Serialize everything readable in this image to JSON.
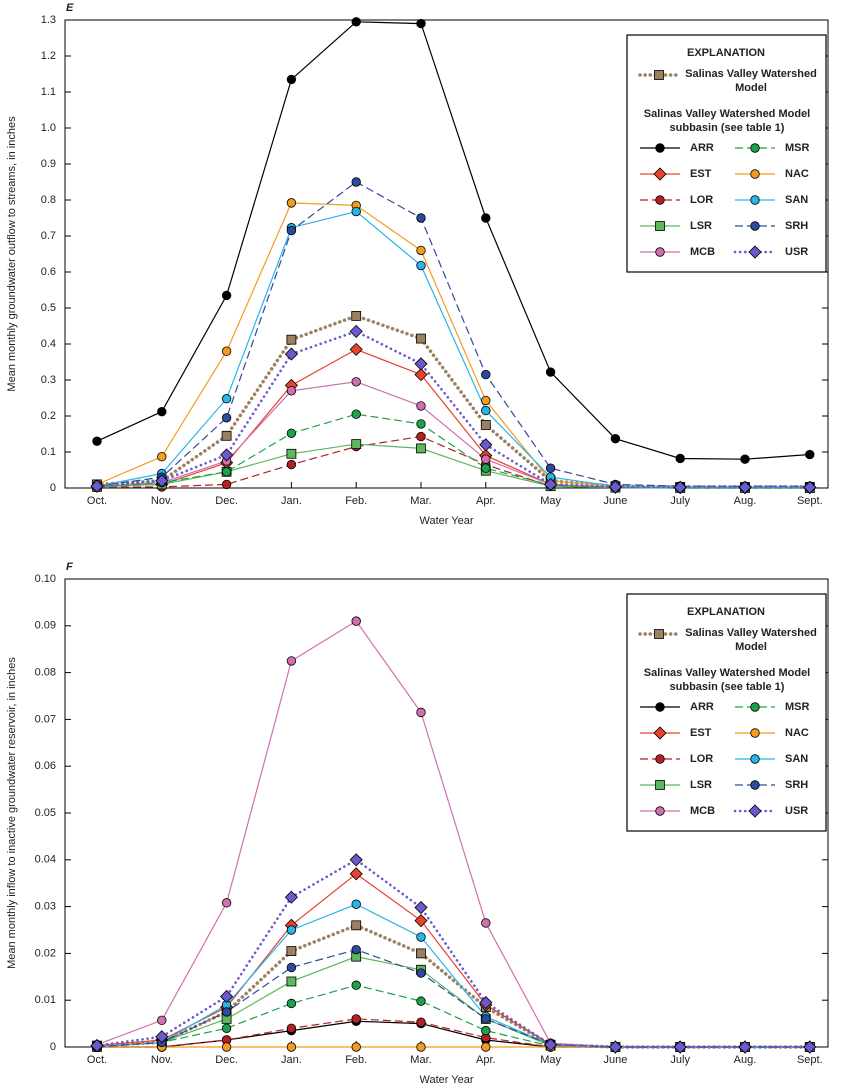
{
  "chart_data": [
    {
      "type": "line",
      "title": "E",
      "y_label": "Mean monthly groundwater outflow to streams, in inches",
      "x_label": "Water Year",
      "legend_title": "EXPLANATION",
      "legend_subheading": "Salinas Valley Watershed Model subbasin (see table 1)",
      "legend": "upper right",
      "categories": [
        "Oct.",
        "Nov.",
        "Dec.",
        "Jan.",
        "Feb.",
        "Mar.",
        "Apr.",
        "May",
        "June",
        "July",
        "Aug.",
        "Sept."
      ],
      "ylim": [
        0,
        1.3
      ],
      "yticks": [
        0,
        0.1,
        0.2,
        0.3,
        0.4,
        0.5,
        0.6,
        0.7,
        0.8,
        0.9,
        {
          "value": 1,
          "label": "1.0"
        },
        1.1,
        1.2,
        1.3
      ],
      "series": [
        {
          "name": "Salinas Valley Watershed Model",
          "color": "#9c8060",
          "line_style": "dotted",
          "marker": "square",
          "values": [
            0.01,
            0.02,
            0.145,
            0.412,
            0.478,
            0.415,
            0.175,
            0.02,
            0.005,
            0.003,
            0.003,
            0.003
          ]
        },
        {
          "name": "ARR",
          "color": "#000000",
          "line_style": "solid",
          "marker": "circle",
          "values": [
            0.13,
            0.212,
            0.535,
            1.135,
            1.295,
            1.29,
            0.75,
            0.322,
            0.137,
            0.082,
            0.08,
            0.093
          ]
        },
        {
          "name": "EST",
          "color": "#e8412c",
          "line_style": "solid",
          "marker": "diamond",
          "values": [
            0.005,
            0.01,
            0.07,
            0.285,
            0.385,
            0.315,
            0.09,
            0.01,
            0.002,
            0.001,
            0.001,
            0.001
          ]
        },
        {
          "name": "LOR",
          "color": "#b41f24",
          "line_style": "dashed",
          "marker": "circle",
          "values": [
            0.002,
            0.003,
            0.01,
            0.065,
            0.115,
            0.143,
            0.065,
            0.005,
            0.001,
            0,
            0,
            0
          ]
        },
        {
          "name": "LSR",
          "color": "#5cb85c",
          "line_style": "solid",
          "marker": "square",
          "values": [
            0.003,
            0.01,
            0.045,
            0.095,
            0.122,
            0.11,
            0.048,
            0.005,
            0.001,
            0,
            0,
            0
          ]
        },
        {
          "name": "MCB",
          "color": "#d070b0",
          "line_style": "solid",
          "marker": "circle",
          "values": [
            0.005,
            0.015,
            0.075,
            0.27,
            0.295,
            0.228,
            0.08,
            0.01,
            0.002,
            0.001,
            0.001,
            0.001
          ]
        },
        {
          "name": "MSR",
          "color": "#1aa34a",
          "line_style": "dashed",
          "marker": "circle",
          "values": [
            0.003,
            0.015,
            0.045,
            0.152,
            0.205,
            0.178,
            0.055,
            0.008,
            0.001,
            0,
            0,
            0
          ]
        },
        {
          "name": "NAC",
          "color": "#f39c1f",
          "line_style": "solid",
          "marker": "circle",
          "values": [
            0.01,
            0.087,
            0.38,
            0.792,
            0.785,
            0.66,
            0.243,
            0.02,
            0.005,
            0.003,
            0.003,
            0.003
          ]
        },
        {
          "name": "SAN",
          "color": "#29b5e8",
          "line_style": "solid",
          "marker": "circle",
          "values": [
            0.005,
            0.04,
            0.248,
            0.723,
            0.768,
            0.618,
            0.215,
            0.03,
            0.005,
            0.002,
            0.002,
            0.002
          ]
        },
        {
          "name": "SRH",
          "color": "#2e4a9c",
          "line_style": "dashed",
          "marker": "circle",
          "values": [
            0.005,
            0.03,
            0.195,
            0.715,
            0.85,
            0.75,
            0.315,
            0.055,
            0.01,
            0.005,
            0.005,
            0.005
          ]
        },
        {
          "name": "USR",
          "color": "#6a5acd",
          "line_style": "dotted",
          "marker": "diamond",
          "values": [
            0.005,
            0.02,
            0.092,
            0.372,
            0.435,
            0.345,
            0.12,
            0.01,
            0.003,
            0.002,
            0.002,
            0.002
          ]
        }
      ]
    },
    {
      "type": "line",
      "title": "F",
      "y_label": "Mean monthly inflow to inactive groundwater reservoir, in inches",
      "x_label": "Water Year",
      "legend_title": "EXPLANATION",
      "legend_subheading": "Salinas Valley Watershed Model subbasin (see table 1)",
      "legend": "upper right",
      "categories": [
        "Oct.",
        "Nov.",
        "Dec.",
        "Jan.",
        "Feb.",
        "Mar.",
        "Apr.",
        "May",
        "June",
        "July",
        "Aug.",
        "Sept."
      ],
      "ylim": [
        0,
        0.1
      ],
      "yticks": [
        0,
        0.01,
        0.02,
        0.03,
        0.04,
        0.05,
        0.06,
        0.07,
        0.08,
        0.09,
        {
          "value": 0.1,
          "label": "0.10"
        }
      ],
      "series": [
        {
          "name": "Salinas Valley Watershed Model",
          "color": "#9c8060",
          "line_style": "dotted",
          "marker": "square",
          "values": [
            0.0003,
            0.001,
            0.0075,
            0.0205,
            0.026,
            0.02,
            0.0085,
            0.0005,
            0,
            0,
            0,
            0
          ]
        },
        {
          "name": "ARR",
          "color": "#000000",
          "line_style": "solid",
          "marker": "circle",
          "values": [
            0,
            0,
            0.0015,
            0.0035,
            0.0055,
            0.005,
            0.0015,
            0,
            0,
            0,
            0,
            0
          ]
        },
        {
          "name": "EST",
          "color": "#e8412c",
          "line_style": "solid",
          "marker": "diamond",
          "values": [
            0.0003,
            0.0015,
            0.0085,
            0.026,
            0.037,
            0.027,
            0.009,
            0.0005,
            0,
            0,
            0,
            0
          ]
        },
        {
          "name": "LOR",
          "color": "#b41f24",
          "line_style": "dashed",
          "marker": "circle",
          "values": [
            0,
            0,
            0.0015,
            0.004,
            0.006,
            0.0053,
            0.002,
            0,
            0,
            0,
            0,
            0
          ]
        },
        {
          "name": "LSR",
          "color": "#5cb85c",
          "line_style": "solid",
          "marker": "square",
          "values": [
            0,
            0.001,
            0.006,
            0.014,
            0.0193,
            0.0165,
            0.006,
            0.0003,
            0,
            0,
            0,
            0
          ]
        },
        {
          "name": "MCB",
          "color": "#d070b0",
          "line_style": "solid",
          "marker": "circle",
          "values": [
            0.0005,
            0.0057,
            0.0308,
            0.0825,
            0.091,
            0.0715,
            0.0265,
            0.0008,
            0,
            0,
            0,
            0
          ]
        },
        {
          "name": "MSR",
          "color": "#1aa34a",
          "line_style": "dashed",
          "marker": "circle",
          "values": [
            0,
            0.001,
            0.004,
            0.0093,
            0.0132,
            0.0098,
            0.0035,
            0.0002,
            0,
            0,
            0,
            0
          ]
        },
        {
          "name": "NAC",
          "color": "#f39c1f",
          "line_style": "solid",
          "marker": "circle",
          "values": [
            0,
            0,
            0,
            0,
            0,
            0,
            0,
            0,
            0,
            0,
            0,
            0
          ]
        },
        {
          "name": "SAN",
          "color": "#29b5e8",
          "line_style": "solid",
          "marker": "circle",
          "values": [
            0,
            0.001,
            0.009,
            0.025,
            0.0305,
            0.0235,
            0.0065,
            0.0005,
            0,
            0,
            0,
            0
          ]
        },
        {
          "name": "SRH",
          "color": "#2e4a9c",
          "line_style": "dashed",
          "marker": "circle",
          "values": [
            0,
            0.001,
            0.0075,
            0.017,
            0.0208,
            0.0158,
            0.006,
            0.0005,
            0,
            0,
            0,
            0
          ]
        },
        {
          "name": "USR",
          "color": "#6a5acd",
          "line_style": "dotted",
          "marker": "diamond",
          "values": [
            0.0003,
            0.0022,
            0.0108,
            0.032,
            0.04,
            0.0298,
            0.0095,
            0.0005,
            0,
            0,
            0,
            0
          ]
        }
      ]
    }
  ]
}
